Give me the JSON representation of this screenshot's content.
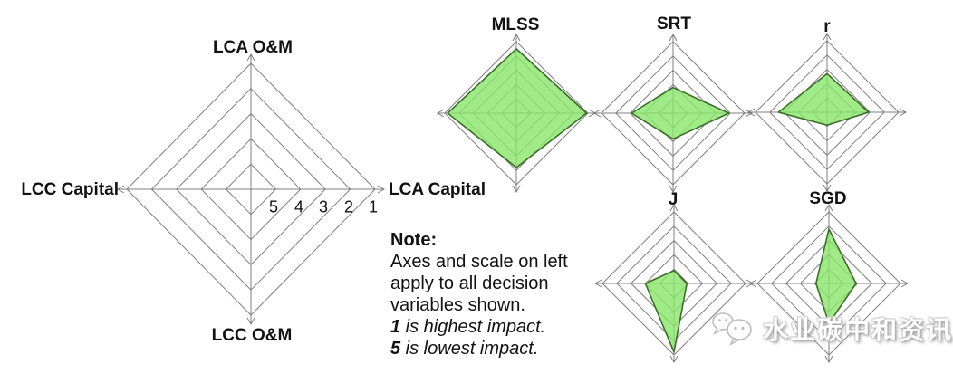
{
  "chart_data": {
    "type": "radar",
    "variant": "diamond-4-axis-small-multiples",
    "axes": [
      "LCA O&M",
      "LCA Capital",
      "LCC O&M",
      "LCC Capital"
    ],
    "scale": {
      "rings": 5,
      "outer_value": 1,
      "inner_value": 5,
      "ticks": [
        "5",
        "4",
        "3",
        "2",
        "1"
      ]
    },
    "series": [
      {
        "name": "MLSS",
        "values": [
          1.5,
          1.1,
          2.2,
          1.2
        ]
      },
      {
        "name": "SRT",
        "values": [
          4.2,
          2.1,
          4.2,
          3.1
        ]
      },
      {
        "name": "r",
        "values": [
          3.3,
          3.1,
          5.1,
          2.6
        ]
      },
      {
        "name": "J",
        "values": [
          5.1,
          5.1,
          1.2,
          4.0
        ]
      },
      {
        "name": "SGD",
        "values": [
          2.2,
          4.1,
          3.2,
          5.1
        ]
      }
    ],
    "colors": {
      "fill": "#88E669",
      "fill_opacity": 0.8,
      "stroke": "#3C6E28",
      "grid": "#7f7f7f",
      "text": "#111111"
    },
    "legend_position": "left",
    "grid": true
  },
  "note": {
    "heading": "Note:",
    "line1": "Axes and scale on left",
    "line2": "apply to all decision",
    "line3": "variables shown.",
    "line4_num": "1",
    "line4_text": " is highest impact.",
    "line5_num": "5",
    "line5_text": " is lowest impact."
  },
  "watermark": {
    "icon": "wechat-logo",
    "text": "水业碳中和资讯"
  }
}
